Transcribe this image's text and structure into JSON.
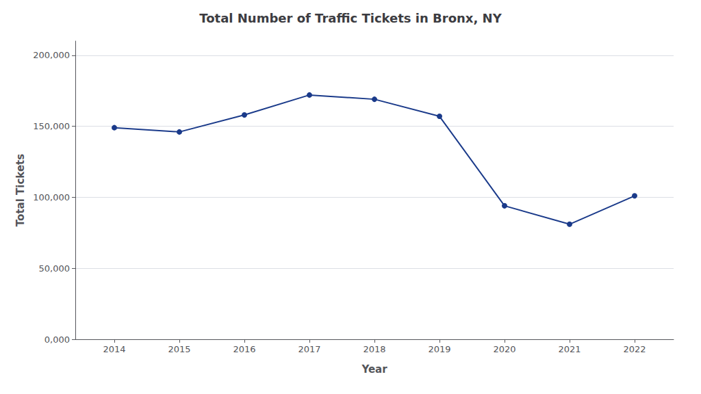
{
  "chart_data": {
    "type": "line",
    "title": "Total Number of Traffic Tickets in Bronx, NY",
    "xlabel": "Year",
    "ylabel": "Total Tickets",
    "x": [
      2014,
      2015,
      2016,
      2017,
      2018,
      2019,
      2020,
      2021,
      2022
    ],
    "values": [
      149000,
      146000,
      158000,
      172000,
      169000,
      157000,
      94000,
      81000,
      101000
    ],
    "color": "#1a3a8a",
    "marker": "circle",
    "xlim": [
      2013.4,
      2022.6
    ],
    "xticks": [
      2014,
      2015,
      2016,
      2017,
      2018,
      2019,
      2020,
      2021,
      2022
    ],
    "ylim": [
      0,
      210000
    ],
    "yticks": [
      {
        "value": 0,
        "label": "0,000"
      },
      {
        "value": 50000,
        "label": "50,000"
      },
      {
        "value": 100000,
        "label": "100,000"
      },
      {
        "value": 150000,
        "label": "150,000"
      },
      {
        "value": 200000,
        "label": "200,000"
      }
    ],
    "grid": true
  }
}
